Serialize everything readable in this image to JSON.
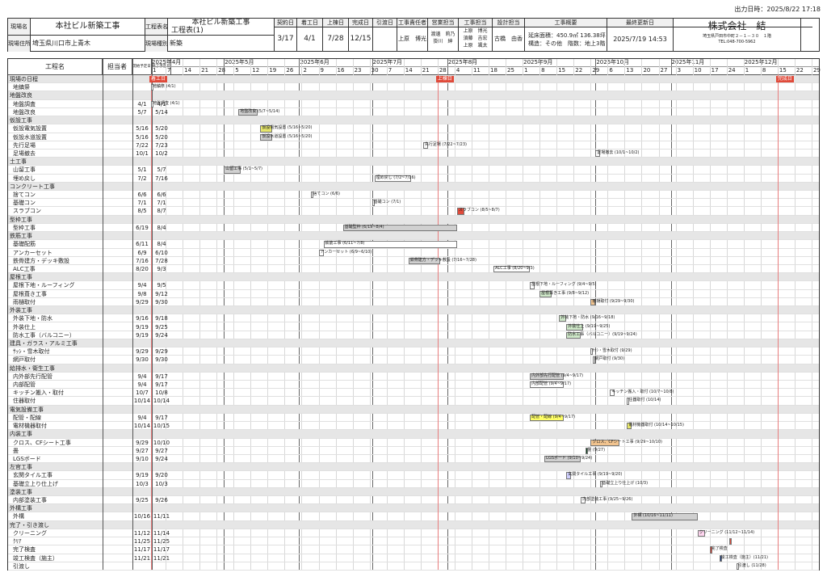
{
  "output_time": "出力日時：2025/8/22 17:18",
  "header": {
    "site_name_label": "現場名",
    "site_name": "本社ビル新築工事",
    "site_address_label": "現場住所",
    "site_address": "埼玉県川口市上青木",
    "chart_name_label": "工程表名",
    "chart_project": "本社ビル新築工事",
    "chart_name": "工程表(1)",
    "site_type_label": "現場種別",
    "site_type": "新築",
    "contract_label": "契約日",
    "contract": "3/17",
    "start_label": "着工日",
    "start": "4/1",
    "ridge_label": "上棟日",
    "ridge": "7/28",
    "complete_label": "完成日",
    "complete": "12/15",
    "handover_label": "引渡日",
    "handover": "",
    "chief_label": "工事責任者",
    "chief": "上原　博光",
    "sales_label": "営業担当",
    "sales": "渡邊　莉乃\n掛川　紳",
    "construct_label": "工事担当",
    "construct": "上原　博光\n須藤　吉宏\n上原　颯太",
    "design_label": "設計担当",
    "design": "古橋　由香",
    "overview_label": "工事概要",
    "overview": "延床面積：450.9㎡ 136.38坪\n構造：その他　階数：地上3階",
    "updated_label": "最終更新日",
    "updated": "2025/7/19 14:53",
    "company": "株式会社　結",
    "company_addr": "埼玉県戸田市中町２－１－３０　１階",
    "company_tel": "TEL:048-700-5962"
  },
  "columns": {
    "task": "工程名",
    "owner": "担当者",
    "plan_start": "開始予定日",
    "plan_end": "終了予定日"
  },
  "months": [
    "2025年4月",
    "2025年5月",
    "2025年6月",
    "2025年7月",
    "2025年8月",
    "2025年9月",
    "2025年10月",
    "2025年11月",
    "2025年12月"
  ],
  "days": [
    [
      "1",
      "7",
      "14",
      "21",
      "28"
    ],
    [
      "5",
      "12",
      "19",
      "26"
    ],
    [
      "2",
      "9",
      "16",
      "23",
      "30"
    ],
    [
      "7",
      "14",
      "21",
      "28"
    ],
    [
      "4",
      "11",
      "18",
      "25"
    ],
    [
      "1",
      "8",
      "15",
      "22",
      "29"
    ],
    [
      "6",
      "13",
      "20",
      "27"
    ],
    [
      "3",
      "10",
      "17",
      "24"
    ],
    [
      "1",
      "8",
      "15",
      "22",
      "29"
    ]
  ],
  "rows": [
    {
      "type": "cat",
      "name": "現場の日程"
    },
    {
      "type": "task",
      "name": "地鎮祭",
      "s": "",
      "e": ""
    },
    {
      "type": "cat",
      "name": "地盤改良"
    },
    {
      "type": "task",
      "name": "地盤調査",
      "s": "4/1",
      "e": "4/1"
    },
    {
      "type": "task",
      "name": "地盤改良",
      "s": "5/7",
      "e": "5/14"
    },
    {
      "type": "cat",
      "name": "仮設工事"
    },
    {
      "type": "task",
      "name": "仮設電気設置",
      "s": "5/16",
      "e": "5/20"
    },
    {
      "type": "task",
      "name": "仮設水道設置",
      "s": "5/16",
      "e": "5/20"
    },
    {
      "type": "task",
      "name": "先行足場",
      "s": "7/22",
      "e": "7/23"
    },
    {
      "type": "task",
      "name": "足場撤去",
      "s": "10/1",
      "e": "10/2"
    },
    {
      "type": "cat",
      "name": "土工事"
    },
    {
      "type": "task",
      "name": "山留工事",
      "s": "5/1",
      "e": "5/7"
    },
    {
      "type": "task",
      "name": "埋め戻し",
      "s": "7/2",
      "e": "7/16"
    },
    {
      "type": "cat",
      "name": "コンクリート工事"
    },
    {
      "type": "task",
      "name": "捨てコン",
      "s": "6/6",
      "e": "6/6"
    },
    {
      "type": "task",
      "name": "基礎コン",
      "s": "7/1",
      "e": "7/1"
    },
    {
      "type": "task",
      "name": "スラブコン",
      "s": "8/5",
      "e": "8/7"
    },
    {
      "type": "cat",
      "name": "型枠工事"
    },
    {
      "type": "task",
      "name": "型枠工事",
      "s": "6/19",
      "e": "8/4"
    },
    {
      "type": "cat",
      "name": "鉄筋工事"
    },
    {
      "type": "task",
      "name": "基礎配筋",
      "s": "6/11",
      "e": "8/4"
    },
    {
      "type": "task",
      "name": "アンカーセット",
      "s": "6/9",
      "e": "6/10"
    },
    {
      "type": "task",
      "name": "鉄骨建方・デッキ敷設",
      "s": "7/16",
      "e": "7/28"
    },
    {
      "type": "task",
      "name": "ALC工事",
      "s": "8/20",
      "e": "9/3"
    },
    {
      "type": "cat",
      "name": "屋根工事"
    },
    {
      "type": "task",
      "name": "屋根下地・ルーフィング",
      "s": "9/4",
      "e": "9/5"
    },
    {
      "type": "task",
      "name": "屋根葺き工事",
      "s": "9/8",
      "e": "9/12"
    },
    {
      "type": "task",
      "name": "雨樋取付",
      "s": "9/29",
      "e": "9/30"
    },
    {
      "type": "cat",
      "name": "外装工事"
    },
    {
      "type": "task",
      "name": "外装下地・防水",
      "s": "9/16",
      "e": "9/18"
    },
    {
      "type": "task",
      "name": "外装仕上",
      "s": "9/19",
      "e": "9/25"
    },
    {
      "type": "task",
      "name": "防水工事（バルコニー）",
      "s": "9/19",
      "e": "9/24"
    },
    {
      "type": "cat",
      "name": "建具・ガラス・アルミ工事"
    },
    {
      "type": "task",
      "name": "ｻｯｼ・雪木取付",
      "s": "9/29",
      "e": "9/29"
    },
    {
      "type": "task",
      "name": "網戸取付",
      "s": "9/30",
      "e": "9/30"
    },
    {
      "type": "cat",
      "name": "給排水・衛生工事"
    },
    {
      "type": "task",
      "name": "内外部先行配管",
      "s": "9/4",
      "e": "9/17"
    },
    {
      "type": "task",
      "name": "内部配管",
      "s": "9/4",
      "e": "9/17"
    },
    {
      "type": "task",
      "name": "キッチン搬入・取付",
      "s": "10/7",
      "e": "10/8"
    },
    {
      "type": "task",
      "name": "住器取付",
      "s": "10/14",
      "e": "10/14"
    },
    {
      "type": "cat",
      "name": "電気設備工事"
    },
    {
      "type": "task",
      "name": "配管・配線",
      "s": "9/4",
      "e": "9/17"
    },
    {
      "type": "task",
      "name": "電材機器取付",
      "s": "10/14",
      "e": "10/15"
    },
    {
      "type": "cat",
      "name": "内装工事"
    },
    {
      "type": "task",
      "name": "クロス、CFシート工事",
      "s": "9/29",
      "e": "10/10"
    },
    {
      "type": "task",
      "name": "畳",
      "s": "9/27",
      "e": "9/27"
    },
    {
      "type": "task",
      "name": "LGSボード",
      "s": "9/10",
      "e": "9/24"
    },
    {
      "type": "cat",
      "name": "左官工事"
    },
    {
      "type": "task",
      "name": "玄関タイル工事",
      "s": "9/19",
      "e": "9/20"
    },
    {
      "type": "task",
      "name": "基礎立上り仕上げ",
      "s": "10/3",
      "e": "10/3"
    },
    {
      "type": "cat",
      "name": "塗装工事"
    },
    {
      "type": "task",
      "name": "内部塗装工事",
      "s": "9/25",
      "e": "9/26"
    },
    {
      "type": "cat",
      "name": "外構工事"
    },
    {
      "type": "task",
      "name": "外構",
      "s": "10/16",
      "e": "11/11"
    },
    {
      "type": "cat",
      "name": "完了・引き渡し"
    },
    {
      "type": "task",
      "name": "クリーニング",
      "s": "11/12",
      "e": "11/14"
    },
    {
      "type": "task",
      "name": "ｸﾘｱ",
      "s": "11/25",
      "e": "11/25"
    },
    {
      "type": "task",
      "name": "完了検査",
      "s": "11/17",
      "e": "11/17"
    },
    {
      "type": "task",
      "name": "竣工検査（施主）",
      "s": "11/21",
      "e": "11/21"
    },
    {
      "type": "task",
      "name": "引渡し",
      "s": "",
      "e": ""
    }
  ],
  "events": [
    {
      "label": "着工日",
      "date": "4/1"
    },
    {
      "label": "上棟日",
      "date": "7/28"
    },
    {
      "label": "完成日",
      "date": "12/15"
    }
  ],
  "bar_labels": {
    "chinsai": "地鎮祭 (4/1)",
    "chousa": "地盤調査 (4/1)",
    "kairyo": "地盤改良 (5/7~5/14)",
    "denki": "仮設電気設置 (5/16~5/20)",
    "suido": "仮設水道設置 (5/16~5/20)",
    "sashi": "先行足場 (7/22~7/23)",
    "tekkyo": "足場撤去 (10/1~10/2)",
    "yamadome": "山留工事 (5/1~5/7)",
    "umemodoshi": "埋め戻し (7/2~7/16)",
    "sutecon": "捨てコン (6/6)",
    "kisocon": "基礎コン (7/1)",
    "slab": "スラブコン (8/5~8/7)",
    "katawaku": "基礎型枠 (6/19~8/4)",
    "katawaku2": "土台枠 (7/28~8/4)",
    "haikin": "鉄筋工事 (6/11~7/8)",
    "haikin2": "デスラブ配筋 (7/28~8/4)",
    "anchor": "アンカーセット (6/9~6/10)",
    "tekkotsu": "鉄骨建方・デッキ敷設 (7/16~7/28)",
    "alc": "ALC工事 (8/20~9/3)",
    "roof1": "屋根下地・ルーフィング (9/4~9/5)",
    "roof2": "屋根葺き工事 (9/8~9/12)",
    "amadoi": "雨樋取付 (9/29~9/30)",
    "gaisou1": "外装下地・防水 (9/16~9/18)",
    "gaisou2": "外装仕上 (9/19~9/25)",
    "bousui": "防水工事（バルコニー）(9/19~9/24)",
    "sash": "ｻｯｼ・雪木取付 (9/29)",
    "amido": "網戸取付 (9/30)",
    "pipe1": "内外部先行配管 (9/4~9/17)",
    "pipe2": "内部配管 (9/4~9/17)",
    "kitchen": "キッチン搬入・取付 (10/7~10/8)",
    "juuki": "住器取付 (10/14)",
    "haisen": "配管・配線 (9/4~9/17)",
    "denzai": "電材機器取付 (10/14~10/15)",
    "cross": "クロス、CFシート工事 (9/29~10/10)",
    "tatami": "畳 (9/27)",
    "lgs": "LGSボード (9/10~9/24)",
    "tile": "玄関タイル工事 (9/19~9/20)",
    "kiso": "基礎立上り仕上げ (10/3)",
    "tosou": "内部塗装工事 (9/25~9/26)",
    "gaikou": "外構 (10/16~11/11)",
    "cleaning": "クリーニング (11/12~11/14)",
    "kanryo": "完了検査",
    "shunko": "竣工検査（施主）(11/21)",
    "hikiwatashi": "引渡し (11/28)"
  }
}
